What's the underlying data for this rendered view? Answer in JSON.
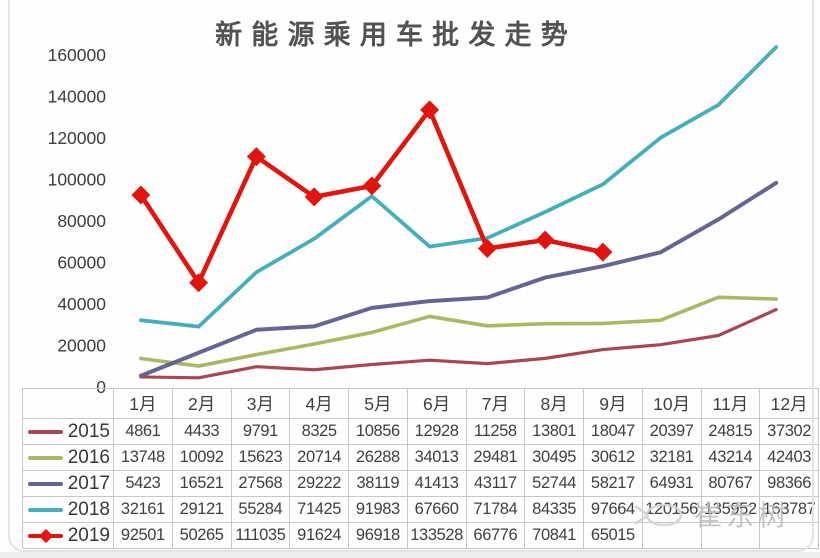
{
  "chart_data": {
    "type": "line",
    "title": "新能源乘用车批发走势",
    "categories": [
      "1月",
      "2月",
      "3月",
      "4月",
      "5月",
      "6月",
      "7月",
      "8月",
      "9月",
      "10月",
      "11月",
      "12月"
    ],
    "series": [
      {
        "name": "2015",
        "color": "#a84752",
        "values": [
          4861,
          4433,
          9791,
          8325,
          10856,
          12928,
          11258,
          13801,
          18047,
          20397,
          24815,
          37302
        ]
      },
      {
        "name": "2016",
        "color": "#a9b862",
        "values": [
          13748,
          10092,
          15623,
          20714,
          26288,
          34013,
          29481,
          30495,
          30612,
          32181,
          43214,
          42403
        ]
      },
      {
        "name": "2017",
        "color": "#666592",
        "values": [
          5423,
          16521,
          27568,
          29222,
          38119,
          41413,
          43117,
          52744,
          58217,
          64931,
          80767,
          98366
        ]
      },
      {
        "name": "2018",
        "color": "#45aebb",
        "values": [
          32161,
          29121,
          55284,
          71425,
          91983,
          67660,
          71784,
          84335,
          97664,
          120156,
          135952,
          163787
        ]
      },
      {
        "name": "2019",
        "color": "#df150e",
        "marker": "diamond",
        "values": [
          92501,
          50265,
          111035,
          91624,
          96918,
          133528,
          66776,
          70841,
          65015,
          null,
          null,
          null
        ]
      }
    ],
    "xlabel": "",
    "ylabel": "",
    "ylim": [
      0,
      160000
    ],
    "yticks": [
      0,
      20000,
      40000,
      60000,
      80000,
      100000,
      120000,
      140000,
      160000
    ],
    "grid": false,
    "legend_position": "table-left"
  },
  "watermark": {
    "text": "崔东树"
  }
}
